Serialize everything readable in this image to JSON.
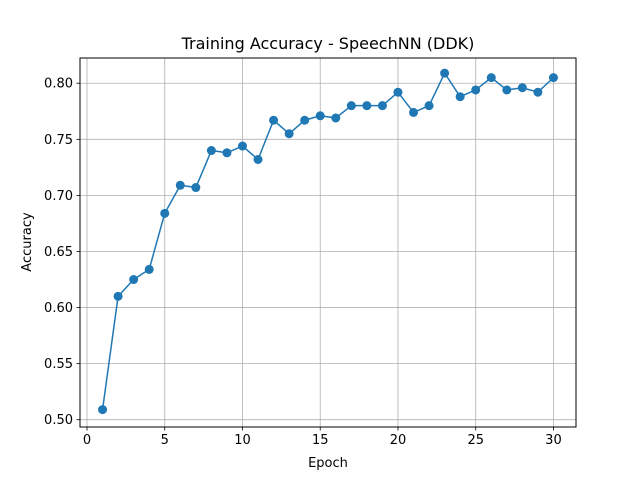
{
  "chart_data": {
    "type": "line",
    "title": "Training Accuracy - SpeechNN (DDK)",
    "xlabel": "Epoch",
    "ylabel": "Accuracy",
    "xlim": [
      -0.45,
      31.45
    ],
    "ylim": [
      0.4935,
      0.8225
    ],
    "xticks": [
      0,
      5,
      10,
      15,
      20,
      25,
      30
    ],
    "yticks": [
      0.5,
      0.55,
      0.6,
      0.65,
      0.7,
      0.75,
      0.8
    ],
    "grid": true,
    "marker": "circle",
    "colors": {
      "series": "#1f77b4",
      "grid": "#b0b0b0"
    },
    "series": [
      {
        "x": [
          1,
          2,
          3,
          4,
          5,
          6,
          7,
          8,
          9,
          10,
          11,
          12,
          13,
          14,
          15,
          16,
          17,
          18,
          19,
          20,
          21,
          22,
          23,
          24,
          25,
          26,
          27,
          28,
          29,
          30
        ],
        "y": [
          0.509,
          0.61,
          0.625,
          0.634,
          0.684,
          0.709,
          0.707,
          0.74,
          0.738,
          0.744,
          0.732,
          0.767,
          0.755,
          0.767,
          0.771,
          0.769,
          0.78,
          0.78,
          0.78,
          0.792,
          0.774,
          0.78,
          0.809,
          0.788,
          0.794,
          0.805,
          0.794,
          0.796,
          0.792,
          0.805
        ]
      }
    ]
  }
}
